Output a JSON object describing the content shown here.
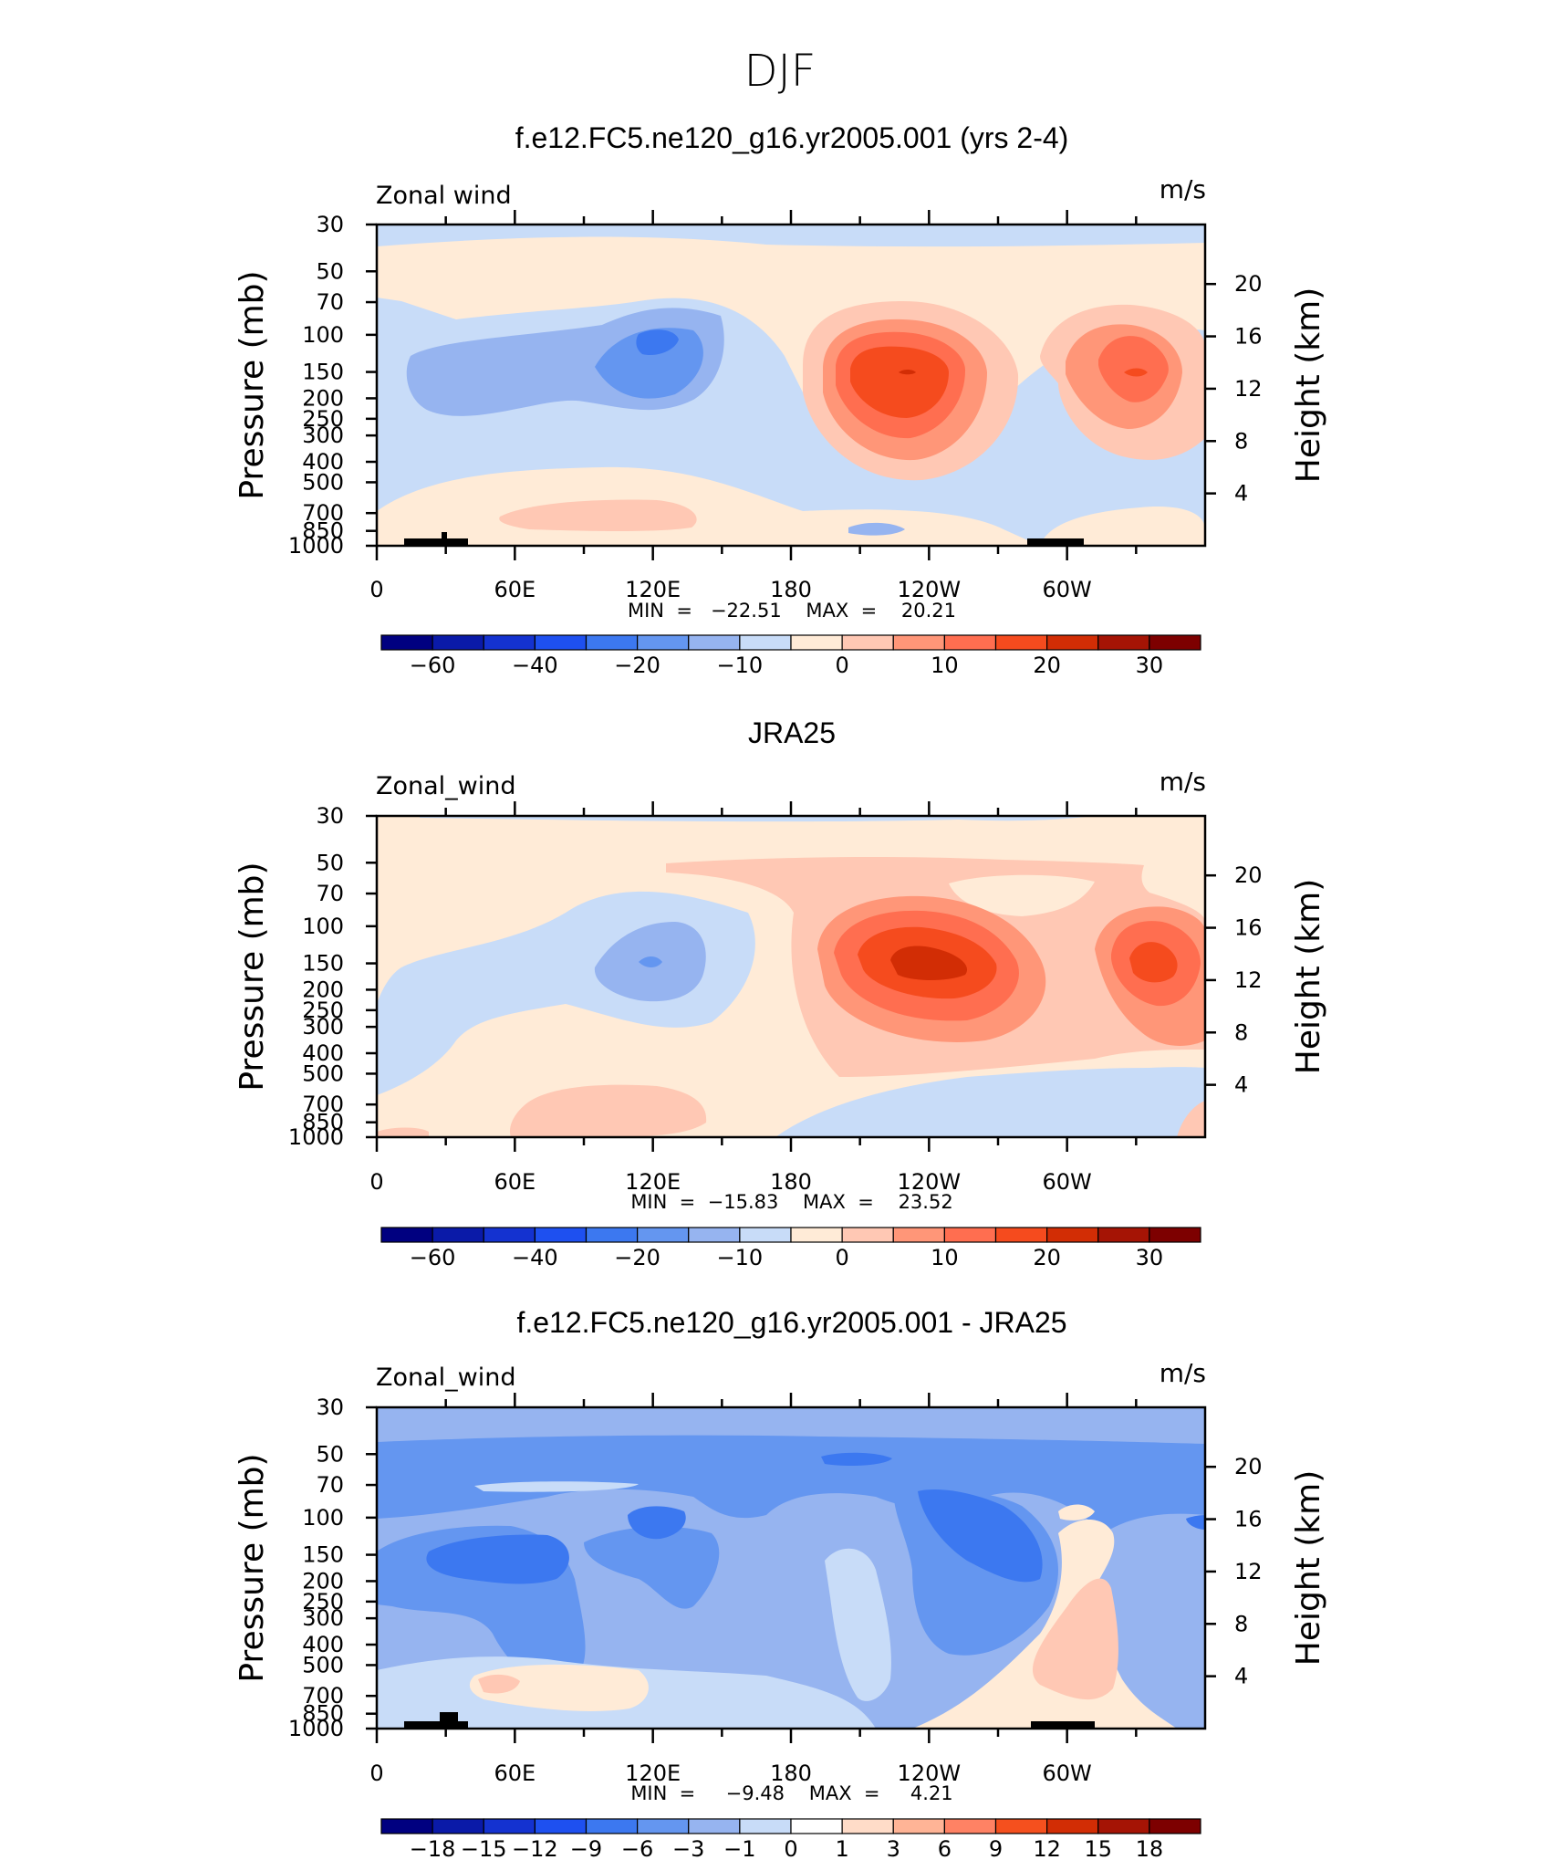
{
  "page": {
    "title": "DJF"
  },
  "palettes": {
    "full": [
      "#000080",
      "#0a1aa8",
      "#1432d0",
      "#1e50f0",
      "#3c78f0",
      "#6496f0",
      "#96b4f0",
      "#c8dcf8",
      "#ffebd7",
      "#ffc8b4",
      "#ff9678",
      "#ff6e50",
      "#f54b1e",
      "#d22d05",
      "#a51405",
      "#7d0000"
    ],
    "diff": [
      "#000080",
      "#0a1aa8",
      "#1432d0",
      "#1e50f0",
      "#3c78f0",
      "#6496f0",
      "#96b4f0",
      "#c8dcf8",
      "#ffffff",
      "#ffdcc8",
      "#ffb496",
      "#ff8264",
      "#f5501e",
      "#d22d05",
      "#a51405",
      "#7d0000"
    ]
  },
  "colorbar_labels": {
    "full": [
      "−60",
      "−40",
      "−20",
      "−10",
      "0",
      "10",
      "20",
      "30"
    ],
    "diff": [
      "−18",
      "−15",
      "−12",
      "−9",
      "−6",
      "−3",
      "−1",
      "0",
      "1",
      "3",
      "6",
      "9",
      "12",
      "15",
      "18"
    ]
  },
  "panels": [
    {
      "title": "f.e12.FC5.ne120_g16.yr2005.001 (yrs 2-4)",
      "variable_label": "Zonal wind",
      "units_label": "m/s",
      "stats_text": "MIN  =   −22.51    MAX  =    20.21",
      "palette": "full"
    },
    {
      "title": "JRA25",
      "variable_label": "Zonal_wind",
      "units_label": "m/s",
      "stats_text": "MIN  =  −15.83    MAX  =    23.52",
      "palette": "full"
    },
    {
      "title": "f.e12.FC5.ne120_g16.yr2005.001 - JRA25",
      "variable_label": "Zonal_wind",
      "units_label": "m/s",
      "stats_text": "MIN  =     −9.48    MAX  =     4.21",
      "palette": "diff"
    }
  ],
  "chart_data": [
    {
      "type": "heatmap",
      "panel": 0,
      "title": "f.e12.FC5.ne120_g16.yr2005.001 (yrs 2-4)",
      "xlabel": "",
      "ylabel": "Pressure (mb)",
      "y2label": "Height (km)",
      "x_ticklabels": [
        "0",
        "60E",
        "120E",
        "180",
        "120W",
        "60W"
      ],
      "y_ticklabels": [
        "30",
        "50",
        "70",
        "100",
        "150",
        "200",
        "250",
        "300",
        "400",
        "500",
        "700",
        "850",
        "1000"
      ],
      "y2_ticklabels": [
        "20",
        "16",
        "12",
        "8",
        "4"
      ],
      "min": -22.51,
      "max": 20.21,
      "colorbar": {
        "levels": [
          -70,
          -60,
          -50,
          -40,
          -30,
          -20,
          -15,
          -10,
          -5,
          0,
          5,
          10,
          15,
          20,
          25,
          30
        ],
        "labels": [
          "−60",
          "−40",
          "−20",
          "−10",
          "0",
          "10",
          "20",
          "30"
        ]
      },
      "features": [
        {
          "label": "westerly max near 105W 150mb",
          "lon": 255,
          "pres": 150,
          "value": 20
        },
        {
          "label": "westerly max near 45W 150mb",
          "lon": 315,
          "pres": 150,
          "value": 17
        },
        {
          "label": "easterly min near 125E 110mb",
          "lon": 125,
          "pres": 110,
          "value": -22
        }
      ]
    },
    {
      "type": "heatmap",
      "panel": 1,
      "title": "JRA25",
      "xlabel": "",
      "ylabel": "Pressure (mb)",
      "y2label": "Height (km)",
      "x_ticklabels": [
        "0",
        "60E",
        "120E",
        "180",
        "120W",
        "60W"
      ],
      "y_ticklabels": [
        "30",
        "50",
        "70",
        "100",
        "150",
        "200",
        "250",
        "300",
        "400",
        "500",
        "700",
        "850",
        "1000"
      ],
      "y2_ticklabels": [
        "20",
        "16",
        "12",
        "8",
        "4"
      ],
      "min": -15.83,
      "max": 23.52,
      "colorbar": {
        "levels": [
          -70,
          -60,
          -50,
          -40,
          -30,
          -20,
          -15,
          -10,
          -5,
          0,
          5,
          10,
          15,
          20,
          25,
          30
        ],
        "labels": [
          "−60",
          "−40",
          "−20",
          "−10",
          "0",
          "10",
          "20",
          "30"
        ]
      },
      "features": [
        {
          "label": "westerly max near 115W 170mb",
          "lon": 245,
          "pres": 170,
          "value": 23
        },
        {
          "label": "westerly max near 30W 150mb",
          "lon": 330,
          "pres": 150,
          "value": 17
        },
        {
          "label": "easterly min near 118E 170mb",
          "lon": 118,
          "pres": 170,
          "value": -15
        }
      ]
    },
    {
      "type": "heatmap",
      "panel": 2,
      "title": "f.e12.FC5.ne120_g16.yr2005.001 - JRA25",
      "xlabel": "",
      "ylabel": "Pressure (mb)",
      "y2label": "Height (km)",
      "x_ticklabels": [
        "0",
        "60E",
        "120E",
        "180",
        "120W",
        "60W"
      ],
      "y_ticklabels": [
        "30",
        "50",
        "70",
        "100",
        "150",
        "200",
        "250",
        "300",
        "400",
        "500",
        "700",
        "850",
        "1000"
      ],
      "y2_ticklabels": [
        "20",
        "16",
        "12",
        "8",
        "4"
      ],
      "min": -9.48,
      "max": 4.21,
      "colorbar": {
        "levels": [
          -21,
          -18,
          -15,
          -12,
          -9,
          -6,
          -3,
          -1,
          0,
          1,
          3,
          6,
          9,
          12,
          15,
          18
        ],
        "labels": [
          "−18",
          "−15",
          "−12",
          "−9",
          "−6",
          "−3",
          "−1",
          "0",
          "1",
          "3",
          "6",
          "9",
          "12",
          "15",
          "18"
        ]
      },
      "features": [
        {
          "label": "negative min near 35E 150mb",
          "lon": 35,
          "pres": 150,
          "value": -9
        },
        {
          "label": "negative min near 120W 120mb",
          "lon": 240,
          "pres": 120,
          "value": -8
        },
        {
          "label": "positive near 60W 500mb",
          "lon": 300,
          "pres": 500,
          "value": 4
        }
      ]
    }
  ]
}
